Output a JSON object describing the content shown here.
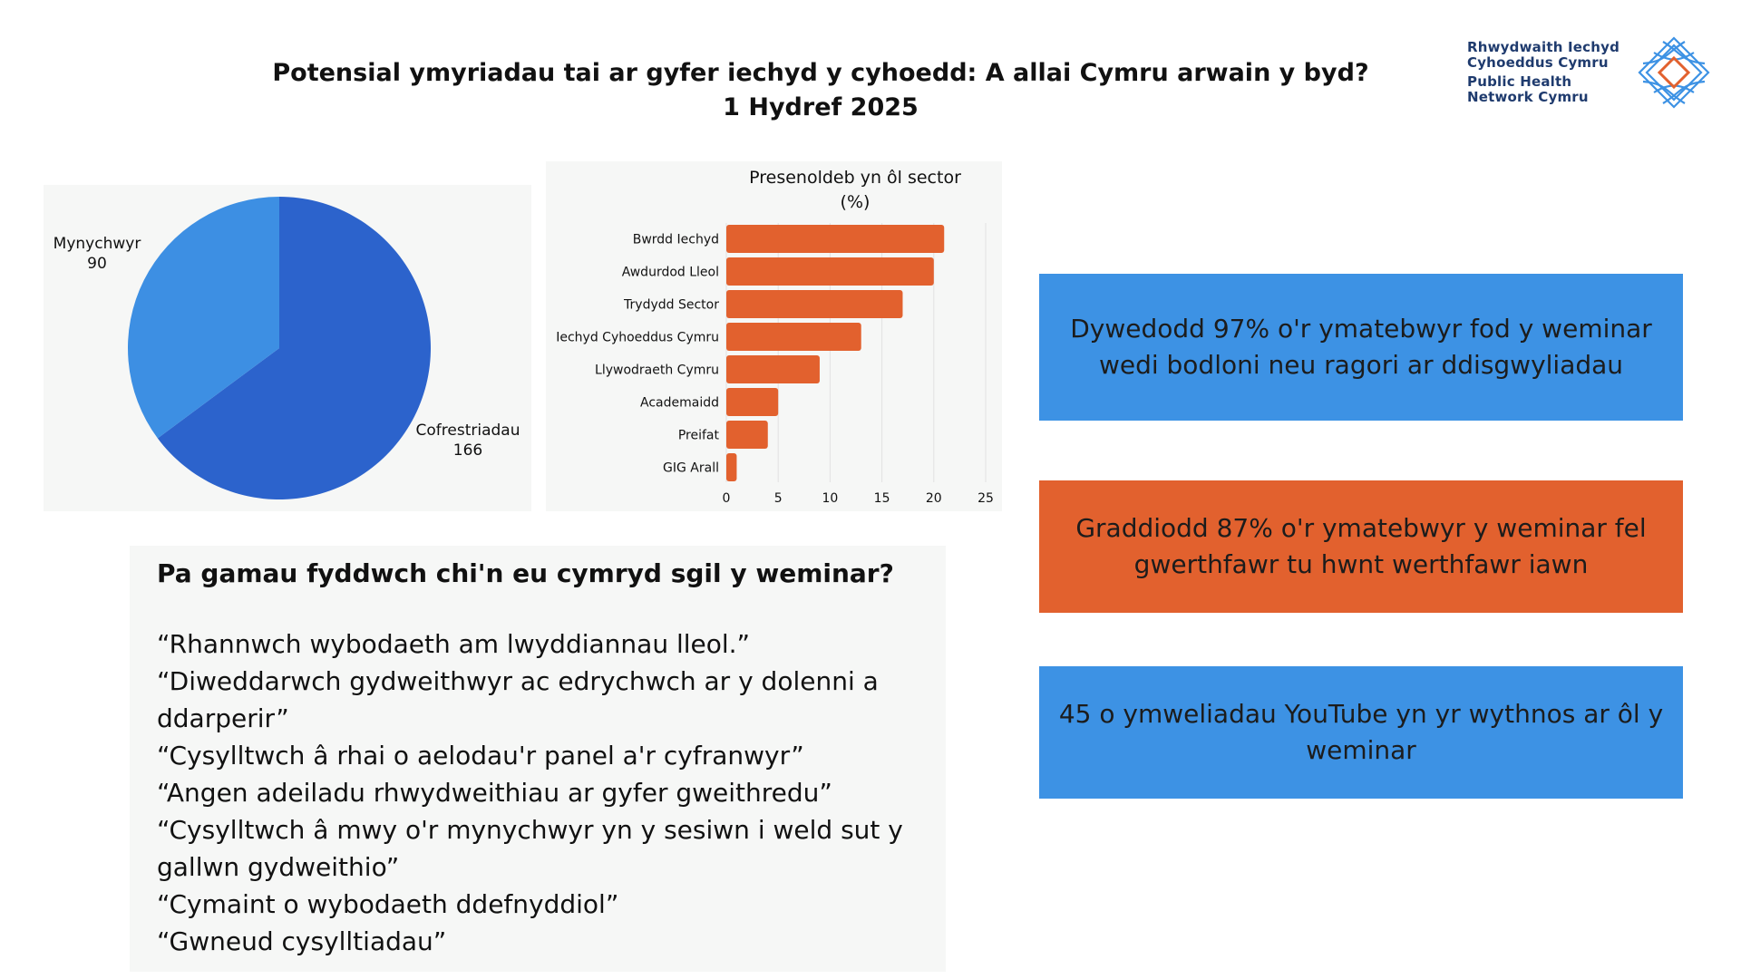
{
  "header": {
    "title_line1": "Potensial ymyriadau tai ar gyfer iechyd y cyhoedd: A allai Cymru arwain y byd?",
    "title_line2": "1 Hydref 2025"
  },
  "logo": {
    "line1": "Rhwydwaith Iechyd",
    "line2": "Cyhoeddus Cymru",
    "line3": "Public Health",
    "line4": "Network Cymru",
    "icon": "diamond-network-logo",
    "colors": {
      "blue": "#3d92e4",
      "orange": "#e2612e",
      "navy": "#1f3b6e"
    }
  },
  "chart_data": [
    {
      "type": "pie",
      "title": "",
      "slices": [
        {
          "label": "Cofrestriadau",
          "value": 166,
          "color": "#2c63cc"
        },
        {
          "label": "Mynychwyr",
          "value": 90,
          "color": "#3d8fe3"
        }
      ]
    },
    {
      "type": "bar",
      "orientation": "horizontal",
      "title": "Presenoldeb yn ôl sector (%)",
      "title_line1": "Presenoldeb yn ôl sector",
      "title_line2": "(%)",
      "categories": [
        "Bwrdd Iechyd",
        "Awdurdod Lleol",
        "Trydydd Sector",
        "Iechyd Cyhoeddus Cymru",
        "Llywodraeth Cymru",
        "Academaidd",
        "Preifat",
        "GIG Arall"
      ],
      "values": [
        21,
        20,
        17,
        13,
        9,
        5,
        4,
        1
      ],
      "xlim": [
        0,
        25
      ],
      "xticks": [
        "0",
        "5",
        "10",
        "15",
        "20",
        "25"
      ],
      "grid": true,
      "color": "#e2612e"
    }
  ],
  "quotes": {
    "question": "Pa gamau fyddwch chi'n eu cymryd sgil y weminar?",
    "items": [
      "“Rhannwch wybodaeth am lwyddiannau lleol.”",
      "“Diweddarwch gydweithwyr ac edrychwch ar y dolenni a ddarperir”",
      "“Cysylltwch â rhai o aelodau'r panel a'r cyfranwyr”",
      "“Angen adeiladu rhwydweithiau ar gyfer gweithredu”",
      "“Cysylltwch â mwy o'r mynychwyr yn y sesiwn i weld sut y gallwn gydweithio”",
      "“Cymaint o wybodaeth ddefnyddiol”",
      "“Gwneud cysylltiadau”"
    ]
  },
  "stats": {
    "satisfaction": "Dywedodd 97% o'r ymatebwyr fod y weminar wedi bodloni neu ragori ar ddisgwyliadau",
    "value": "Graddiodd 87% o'r ymatebwyr y weminar fel gwerthfawr tu hwnt werthfawr iawn",
    "youtube": "45 o ymweliadau YouTube yn yr wythnos ar ôl y weminar"
  }
}
